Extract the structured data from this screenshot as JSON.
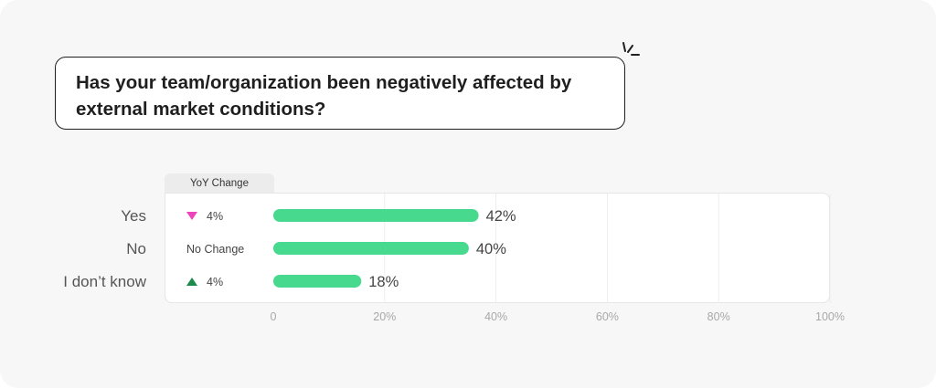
{
  "question": "Has your team/organization been negatively affected by external market conditions?",
  "colors": {
    "bar": "#47d98d",
    "down": "#ef43bb",
    "up": "#1a8a4a",
    "grid": "#ececec"
  },
  "yoy_header": "YoY Change",
  "chart_data": {
    "type": "bar",
    "orientation": "horizontal",
    "categories": [
      "Yes",
      "No",
      "I don’t know"
    ],
    "values": [
      42,
      40,
      18
    ],
    "value_labels": [
      "42%",
      "40%",
      "18%"
    ],
    "yoy_change": [
      {
        "direction": "down",
        "text": "4%"
      },
      {
        "direction": "none",
        "text": "No Change"
      },
      {
        "direction": "up",
        "text": "4%"
      }
    ],
    "xlim": [
      0,
      100
    ],
    "xticks": [
      0,
      20,
      40,
      60,
      80,
      100
    ],
    "xtick_labels": [
      "0",
      "20%",
      "40%",
      "60%",
      "80%",
      "100%"
    ],
    "grid": true
  }
}
